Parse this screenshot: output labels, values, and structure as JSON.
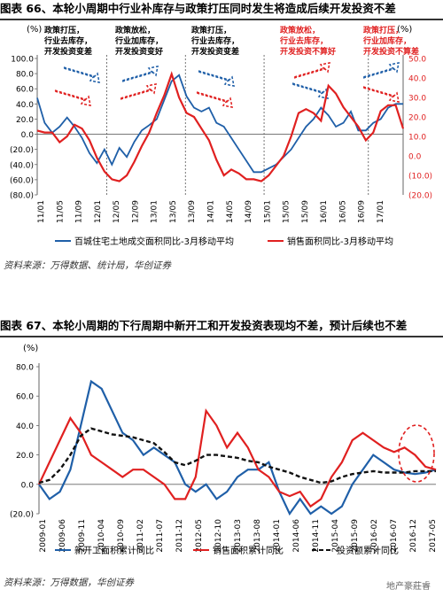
{
  "figure1": {
    "title": "图表 66、本轮小周期中行业补库存与政策打压同时发生将造成后续开发投资不差",
    "source": "资料来源：万得数据、统计局，华创证券"
  },
  "figure2": {
    "title": "图表 67、本轮小周期的下行周期中新开工和开发投资表现均不差，预计后续也不差",
    "source": "资料来源：万得数据，华创证券"
  },
  "watermark": "地产豪莊睿",
  "chart_data": [
    {
      "type": "line",
      "unit_left": "(%)",
      "unit_right": "(%)",
      "ylim_left": [
        -80,
        100
      ],
      "yticks_left": [
        "100.0",
        "80.0",
        "60.0",
        "40.0",
        "20.0",
        "0.0",
        "(20.0)",
        "(40.0)",
        "(60.0)",
        "(80.0)"
      ],
      "ylim_right": [
        -20,
        50
      ],
      "yticks_right": [
        "50.0",
        "40.0",
        "30.0",
        "20.0",
        "10.0",
        "0.0",
        "(10.0)",
        "(20.0)"
      ],
      "x_ticks": [
        "11/01",
        "11/05",
        "11/09",
        "12/01",
        "12/05",
        "12/09",
        "13/01",
        "13/05",
        "13/09",
        "14/01",
        "14/05",
        "14/09",
        "15/01",
        "15/05",
        "15/09",
        "16/01",
        "16/05",
        "16/09",
        "17/01"
      ],
      "annotations": [
        {
          "text": [
            "政策打压，",
            "行业去库存，",
            "开发投资变差"
          ],
          "color": "#000000"
        },
        {
          "text": [
            "政策放松，",
            "行业加库存，",
            "开发投资变好"
          ],
          "color": "#000000"
        },
        {
          "text": [
            "政策打压，",
            "行业去库存，",
            "开发投资变差"
          ],
          "color": "#000000"
        },
        {
          "text": [
            "政策放松，",
            "行业去库存，",
            "开发投资不算好"
          ],
          "color": "#e02020"
        },
        {
          "text": [
            "政策打压，",
            "行业加库存，",
            "开发投资不算差"
          ],
          "color": "#e02020"
        }
      ],
      "series": [
        {
          "name": "百城住宅土地成交面积同比-3月移动平均",
          "axis": "left",
          "color": "#1f5fa8",
          "values": [
            48,
            15,
            2,
            10,
            22,
            10,
            -5,
            -25,
            -38,
            -20,
            -40,
            -18,
            -30,
            -10,
            5,
            12,
            20,
            45,
            70,
            78,
            50,
            35,
            30,
            35,
            15,
            10,
            -5,
            -20,
            -35,
            -50,
            -50,
            -45,
            -40,
            -30,
            -20,
            -5,
            10,
            20,
            35,
            25,
            10,
            15,
            30,
            5,
            5,
            15,
            20,
            35,
            40,
            40
          ]
        },
        {
          "name": "销售面积同比-3月移动平均",
          "axis": "right",
          "color": "#e02020",
          "values": [
            13,
            12,
            12,
            7,
            10,
            16,
            14,
            8,
            -1,
            -8,
            -12,
            -13,
            -10,
            -3,
            5,
            12,
            22,
            31,
            42,
            30,
            22,
            20,
            14,
            8,
            -2,
            -10,
            -7,
            -9,
            -12,
            -12,
            -13,
            -10,
            -5,
            0,
            10,
            22,
            24,
            22,
            18,
            36,
            32,
            25,
            20,
            15,
            8,
            12,
            23,
            26,
            26,
            14
          ]
        }
      ]
    },
    {
      "type": "line",
      "unit": "(%)",
      "ylim": [
        -20,
        80
      ],
      "yticks": [
        "80.0",
        "60.0",
        "40.0",
        "20.0",
        "0.0",
        "(20.0)"
      ],
      "x_ticks": [
        "2009-01",
        "2009-06",
        "2009-11",
        "2010-04",
        "2010-09",
        "2011-02",
        "2011-07",
        "2011-12",
        "2012-05",
        "2012-10",
        "2013-03",
        "2013-08",
        "2014-01",
        "2014-06",
        "2014-11",
        "2015-04",
        "2015-09",
        "2016-02",
        "2016-07",
        "2016-12",
        "2017-05"
      ],
      "series": [
        {
          "name": "新开工面积累计同比",
          "color": "#1f5fa8",
          "dash": "solid",
          "values": [
            0,
            -10,
            -5,
            10,
            40,
            70,
            65,
            50,
            35,
            30,
            20,
            25,
            20,
            15,
            0,
            -5,
            0,
            -10,
            -5,
            5,
            10,
            10,
            15,
            -5,
            -20,
            -10,
            -20,
            -15,
            -20,
            -15,
            0,
            10,
            20,
            15,
            10,
            8,
            7,
            8,
            10
          ]
        },
        {
          "name": "销售面积累计同比",
          "color": "#e02020",
          "dash": "solid",
          "values": [
            0,
            15,
            30,
            45,
            35,
            20,
            15,
            10,
            5,
            10,
            10,
            5,
            0,
            -10,
            -10,
            5,
            50,
            40,
            25,
            35,
            25,
            10,
            5,
            -5,
            -8,
            -5,
            -15,
            -10,
            5,
            15,
            30,
            35,
            30,
            25,
            22,
            25,
            20,
            12,
            10
          ]
        },
        {
          "name": "投资额累计同比",
          "color": "#111111",
          "dash": "dashed",
          "values": [
            1,
            3,
            10,
            20,
            33,
            38,
            36,
            34,
            33,
            32,
            30,
            28,
            22,
            15,
            13,
            16,
            20,
            20,
            19,
            18,
            16,
            15,
            12,
            10,
            8,
            5,
            3,
            1,
            2,
            5,
            7,
            8,
            9,
            8,
            8,
            8,
            9,
            9,
            9
          ]
        }
      ]
    }
  ]
}
